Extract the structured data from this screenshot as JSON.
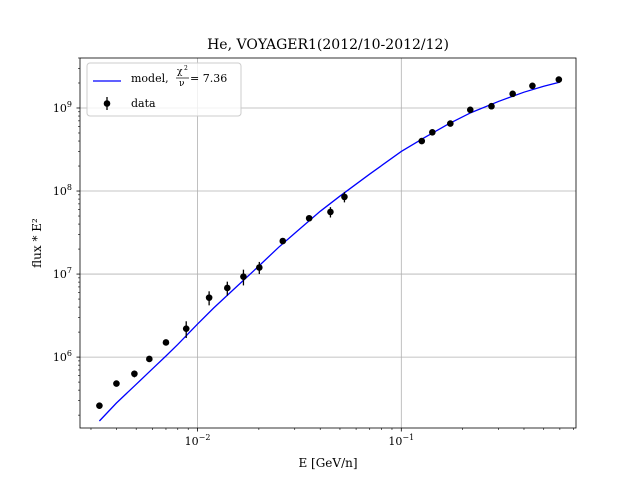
{
  "chart_data": {
    "type": "scatter",
    "title": "He, VOYAGER1(2012/10-2012/12)",
    "xlabel": "E [GeV/n]",
    "ylabel": "flux * E²",
    "xscale": "log",
    "yscale": "log",
    "xlim": [
      0.00265,
      0.72
    ],
    "ylim": [
      140000,
      4000000000
    ],
    "grid": true,
    "legend_position": "top-left",
    "colors": {
      "model": "#0000ff",
      "data": "#000000",
      "grid": "#b0b0b0"
    },
    "x_ticks": [
      {
        "base": "10",
        "exp": "−2",
        "value": 0.01
      },
      {
        "base": "10",
        "exp": "−1",
        "value": 0.1
      }
    ],
    "y_ticks": [
      {
        "base": "10",
        "exp": "6",
        "value": 1000000
      },
      {
        "base": "10",
        "exp": "7",
        "value": 10000000
      },
      {
        "base": "10",
        "exp": "8",
        "value": 100000000
      },
      {
        "base": "10",
        "exp": "9",
        "value": 1000000000
      }
    ],
    "legend": {
      "model_prefix": "model, ",
      "model_chi_num": "χ",
      "model_chi_sup": "2",
      "model_chi_den": "ν",
      "model_suffix": " = 7.36",
      "data_label": "data"
    },
    "series": [
      {
        "name": "data",
        "kind": "errorbar",
        "points": [
          {
            "x": 0.0033,
            "y": 260000,
            "yerr_low": 20000,
            "yerr_high": 20000
          },
          {
            "x": 0.004,
            "y": 480000,
            "yerr_low": 30000,
            "yerr_high": 30000
          },
          {
            "x": 0.0049,
            "y": 630000,
            "yerr_low": 60000,
            "yerr_high": 60000
          },
          {
            "x": 0.0058,
            "y": 950000,
            "yerr_low": 50000,
            "yerr_high": 50000
          },
          {
            "x": 0.007,
            "y": 1500000,
            "yerr_low": 100000,
            "yerr_high": 100000
          },
          {
            "x": 0.0088,
            "y": 2200000,
            "yerr_low": 500000,
            "yerr_high": 500000
          },
          {
            "x": 0.0114,
            "y": 5200000,
            "yerr_low": 1000000,
            "yerr_high": 1000000
          },
          {
            "x": 0.014,
            "y": 6800000,
            "yerr_low": 1300000,
            "yerr_high": 1300000
          },
          {
            "x": 0.0168,
            "y": 9300000,
            "yerr_low": 2000000,
            "yerr_high": 2000000
          },
          {
            "x": 0.0201,
            "y": 12000000,
            "yerr_low": 2000000,
            "yerr_high": 2000000
          },
          {
            "x": 0.0262,
            "y": 25000000,
            "yerr_low": 2000000,
            "yerr_high": 2000000
          },
          {
            "x": 0.0353,
            "y": 47000000,
            "yerr_low": 4000000,
            "yerr_high": 4000000
          },
          {
            "x": 0.0449,
            "y": 56000000,
            "yerr_low": 8000000,
            "yerr_high": 8000000
          },
          {
            "x": 0.0526,
            "y": 85000000,
            "yerr_low": 12000000,
            "yerr_high": 12000000
          },
          {
            "x": 0.126,
            "y": 400000000,
            "yerr_low": 30000000,
            "yerr_high": 30000000
          },
          {
            "x": 0.142,
            "y": 510000000,
            "yerr_low": 30000000,
            "yerr_high": 30000000
          },
          {
            "x": 0.174,
            "y": 650000000,
            "yerr_low": 40000000,
            "yerr_high": 40000000
          },
          {
            "x": 0.218,
            "y": 950000000,
            "yerr_low": 40000000,
            "yerr_high": 40000000
          },
          {
            "x": 0.277,
            "y": 1050000000,
            "yerr_low": 50000000,
            "yerr_high": 50000000
          },
          {
            "x": 0.352,
            "y": 1480000000,
            "yerr_low": 60000000,
            "yerr_high": 60000000
          },
          {
            "x": 0.44,
            "y": 1850000000,
            "yerr_low": 60000000,
            "yerr_high": 60000000
          },
          {
            "x": 0.593,
            "y": 2200000000,
            "yerr_low": 80000000,
            "yerr_high": 80000000
          }
        ]
      },
      {
        "name": "model",
        "kind": "line",
        "points": [
          {
            "x": 0.0033,
            "y": 170000
          },
          {
            "x": 0.004,
            "y": 280000
          },
          {
            "x": 0.005,
            "y": 470000
          },
          {
            "x": 0.006,
            "y": 720000
          },
          {
            "x": 0.007,
            "y": 1030000
          },
          {
            "x": 0.008,
            "y": 1420000
          },
          {
            "x": 0.01,
            "y": 2500000
          },
          {
            "x": 0.012,
            "y": 3900000
          },
          {
            "x": 0.015,
            "y": 6500000
          },
          {
            "x": 0.02,
            "y": 12500000
          },
          {
            "x": 0.025,
            "y": 21000000
          },
          {
            "x": 0.03,
            "y": 31000000
          },
          {
            "x": 0.04,
            "y": 57000000
          },
          {
            "x": 0.05,
            "y": 87000000
          },
          {
            "x": 0.07,
            "y": 160000000
          },
          {
            "x": 0.1,
            "y": 300000000
          },
          {
            "x": 0.13,
            "y": 440000000
          },
          {
            "x": 0.17,
            "y": 640000000
          },
          {
            "x": 0.22,
            "y": 880000000
          },
          {
            "x": 0.3,
            "y": 1200000000
          },
          {
            "x": 0.4,
            "y": 1550000000
          },
          {
            "x": 0.5,
            "y": 1830000000
          },
          {
            "x": 0.6,
            "y": 2050000000
          }
        ]
      }
    ]
  }
}
